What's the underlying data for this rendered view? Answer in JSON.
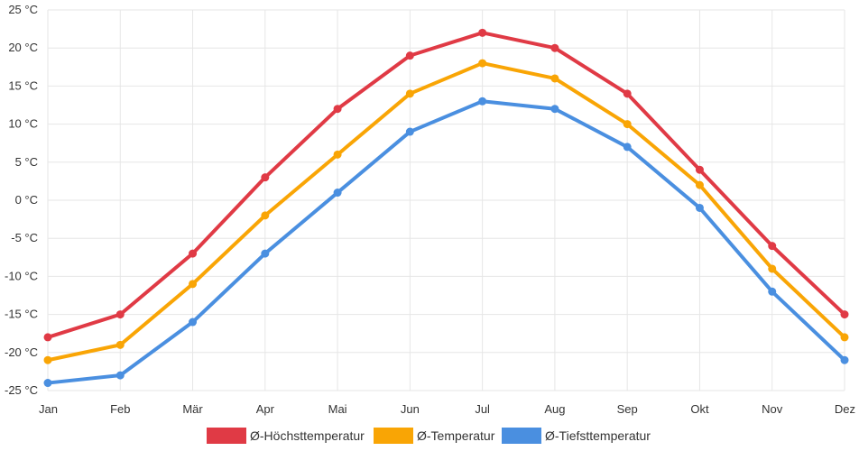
{
  "chart_data": {
    "type": "line",
    "categories": [
      "Jan",
      "Feb",
      "Mär",
      "Apr",
      "Mai",
      "Jun",
      "Jul",
      "Aug",
      "Sep",
      "Okt",
      "Nov",
      "Dez"
    ],
    "y_ticks": [
      "25 °C",
      "20 °C",
      "15 °C",
      "10 °C",
      "5 °C",
      "0 °C",
      "-5 °C",
      "-10 °C",
      "-15 °C",
      "-20 °C",
      "-25 °C"
    ],
    "ylim": [
      -25,
      25
    ],
    "y_unit": "°C",
    "grid": true,
    "legend_position": "bottom",
    "series": [
      {
        "name": "Ø-Höchsttemperatur",
        "color": "#e03a45",
        "values": [
          -18,
          -15,
          -7,
          3,
          12,
          19,
          22,
          20,
          14,
          4,
          -6,
          -15
        ]
      },
      {
        "name": "Ø-Temperatur",
        "color": "#f9a505",
        "values": [
          -21,
          -19,
          -11,
          -2,
          6,
          14,
          18,
          16,
          10,
          2,
          -9,
          -18
        ]
      },
      {
        "name": "Ø-Tiefsttemperatur",
        "color": "#4a8fe0",
        "values": [
          -24,
          -23,
          -16,
          -7,
          1,
          9,
          13,
          12,
          7,
          -1,
          -12,
          -21
        ]
      }
    ]
  }
}
